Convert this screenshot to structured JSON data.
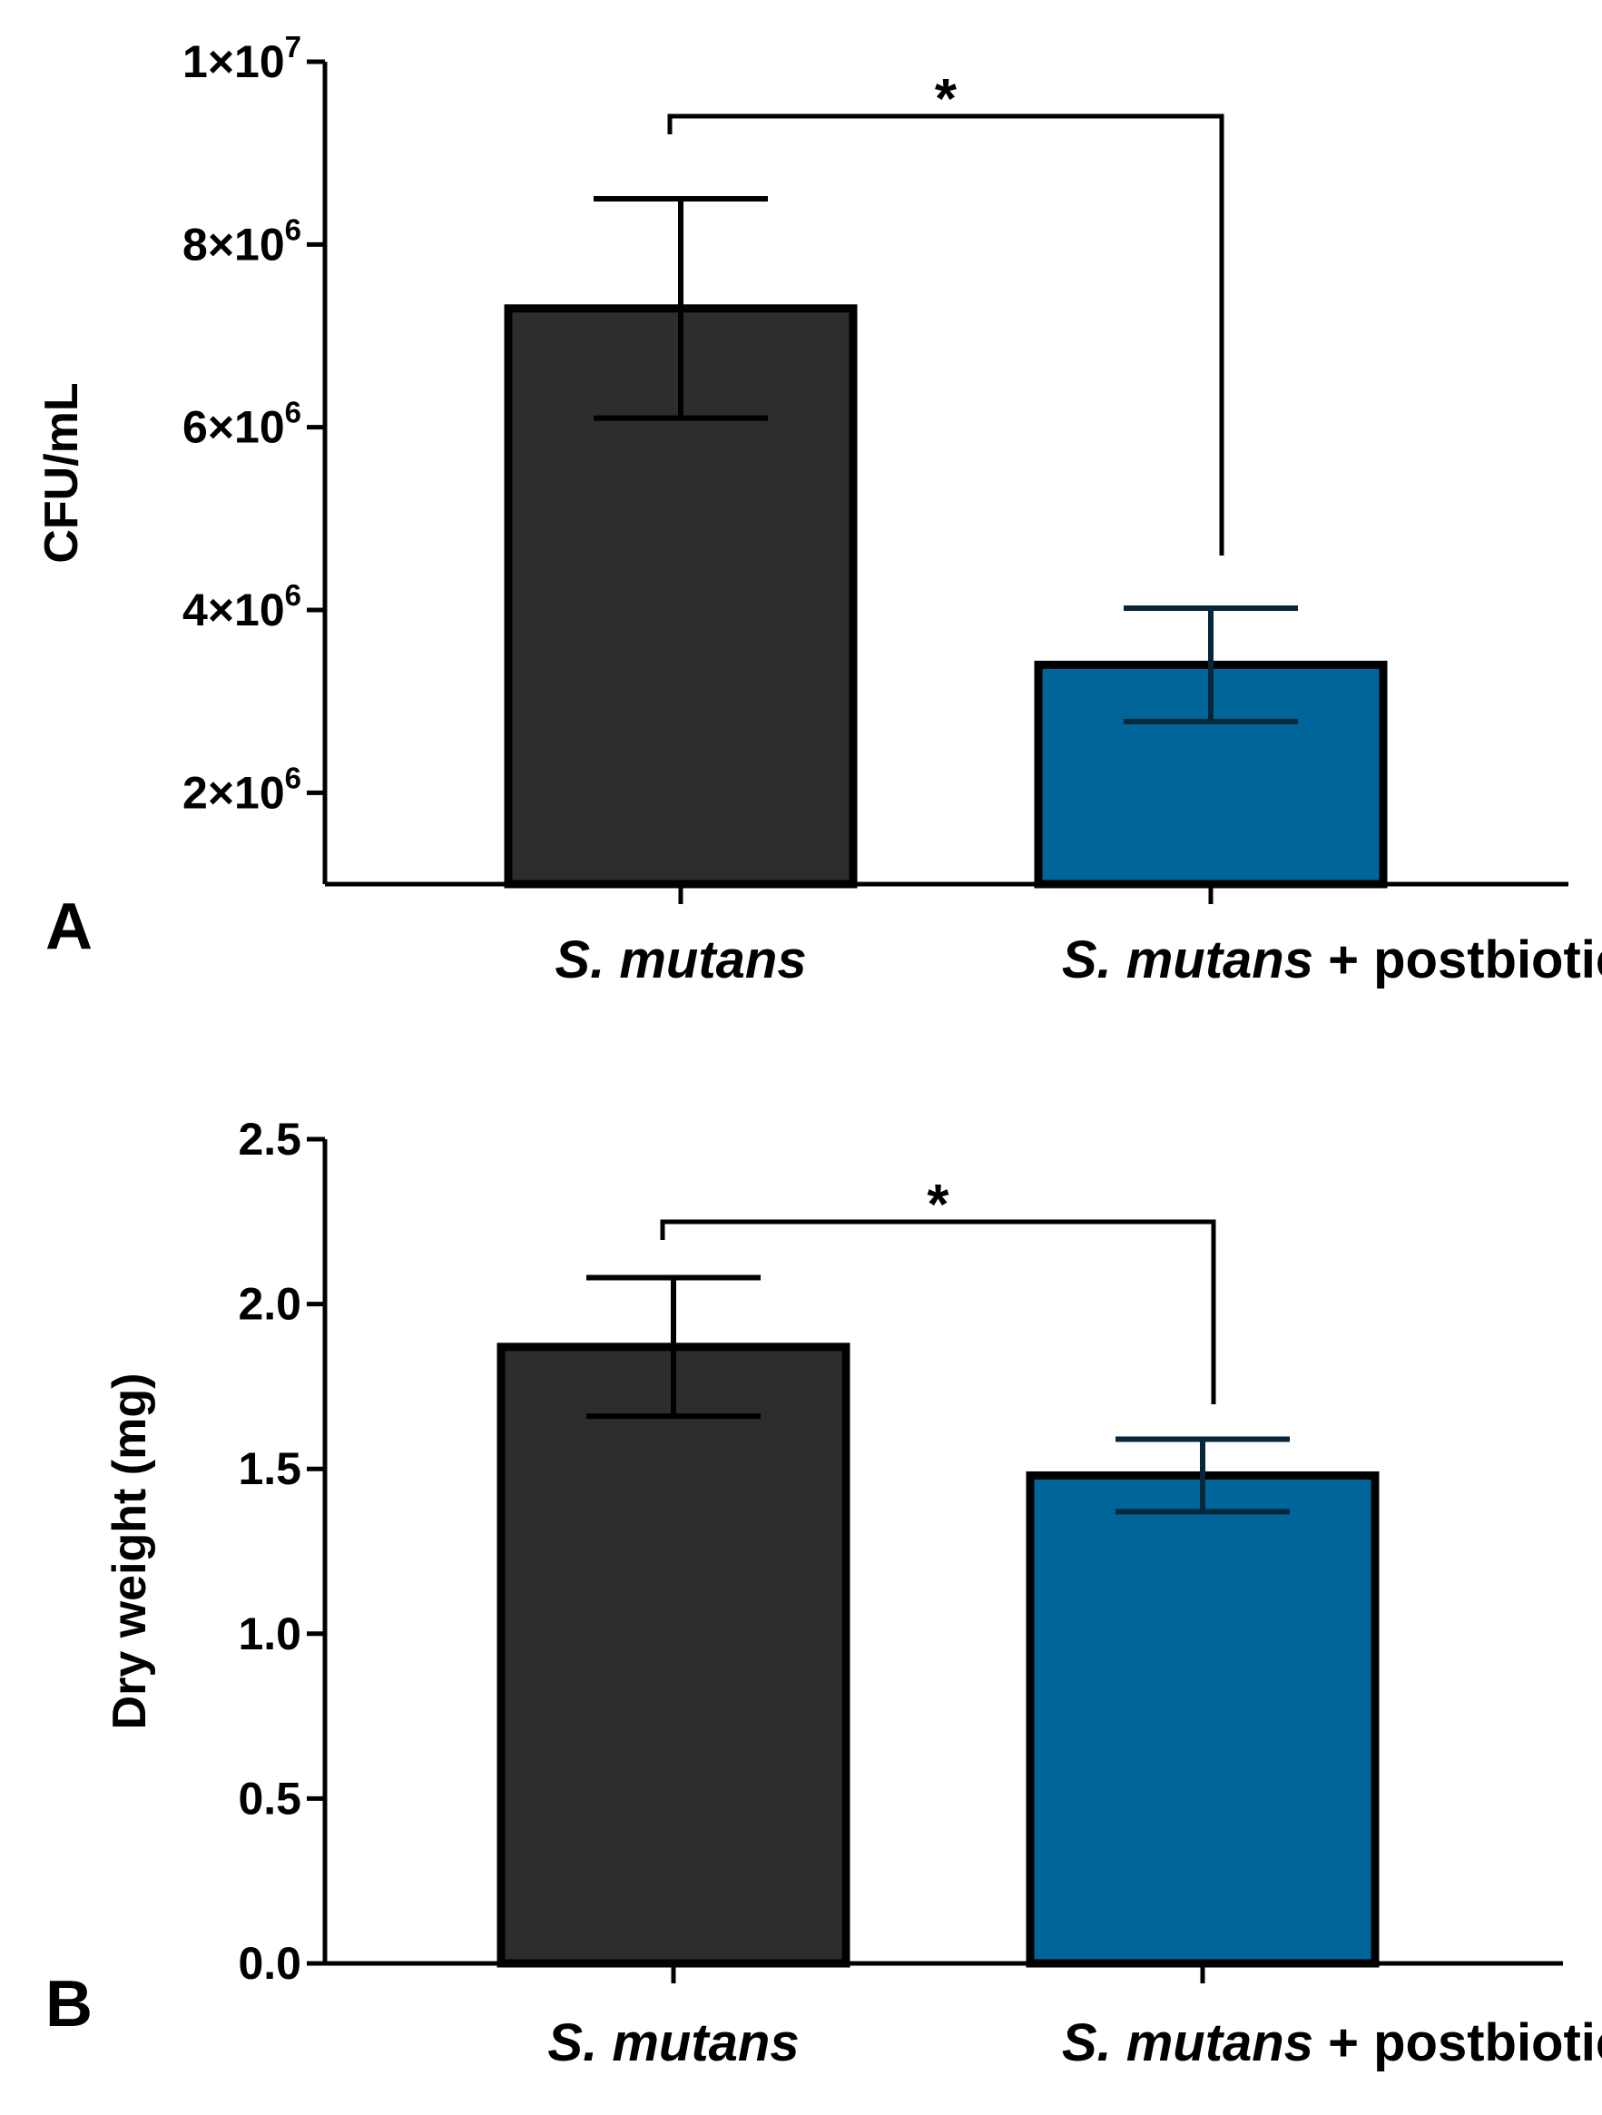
{
  "chart_data": [
    {
      "panel": "A",
      "type": "bar",
      "ylabel": "CFU/mL",
      "ylim": [
        1000000,
        10000000
      ],
      "yticks": [
        {
          "value": 2000000,
          "base": "2×10",
          "exp": "6"
        },
        {
          "value": 4000000,
          "base": "4×10",
          "exp": "6"
        },
        {
          "value": 6000000,
          "base": "6×10",
          "exp": "6"
        },
        {
          "value": 8000000,
          "base": "8×10",
          "exp": "6"
        },
        {
          "value": 10000000,
          "base": "1×10",
          "exp": "7"
        }
      ],
      "categories": [
        {
          "italic": "S. mutans",
          "suffix": ""
        },
        {
          "italic": "S. mutans",
          "suffix": " + postbiotic"
        }
      ],
      "values": [
        7300000,
        3400000
      ],
      "errors": [
        1200000,
        620000
      ],
      "colors": [
        "#2d2d2d",
        "#01659a"
      ],
      "error_colors": [
        "#000000",
        "#06263a"
      ],
      "significance": {
        "label": "*",
        "between": [
          0,
          1
        ]
      }
    },
    {
      "panel": "B",
      "type": "bar",
      "ylabel": "Dry weight (mg)",
      "ylim": [
        0,
        2.5
      ],
      "yticks": [
        {
          "value": 0,
          "base": "0.0"
        },
        {
          "value": 0.5,
          "base": "0.5"
        },
        {
          "value": 1.0,
          "base": "1.0"
        },
        {
          "value": 1.5,
          "base": "1.5"
        },
        {
          "value": 2.0,
          "base": "2.0"
        },
        {
          "value": 2.5,
          "base": "2.5"
        }
      ],
      "categories": [
        {
          "italic": "S. mutans",
          "suffix": ""
        },
        {
          "italic": "S. mutans",
          "suffix": " + postbiotic"
        }
      ],
      "values": [
        1.87,
        1.48
      ],
      "errors": [
        0.21,
        0.11
      ],
      "colors": [
        "#2d2d2d",
        "#01659a"
      ],
      "error_colors": [
        "#000000",
        "#06263a"
      ],
      "significance": {
        "label": "*",
        "between": [
          0,
          1
        ]
      }
    }
  ]
}
